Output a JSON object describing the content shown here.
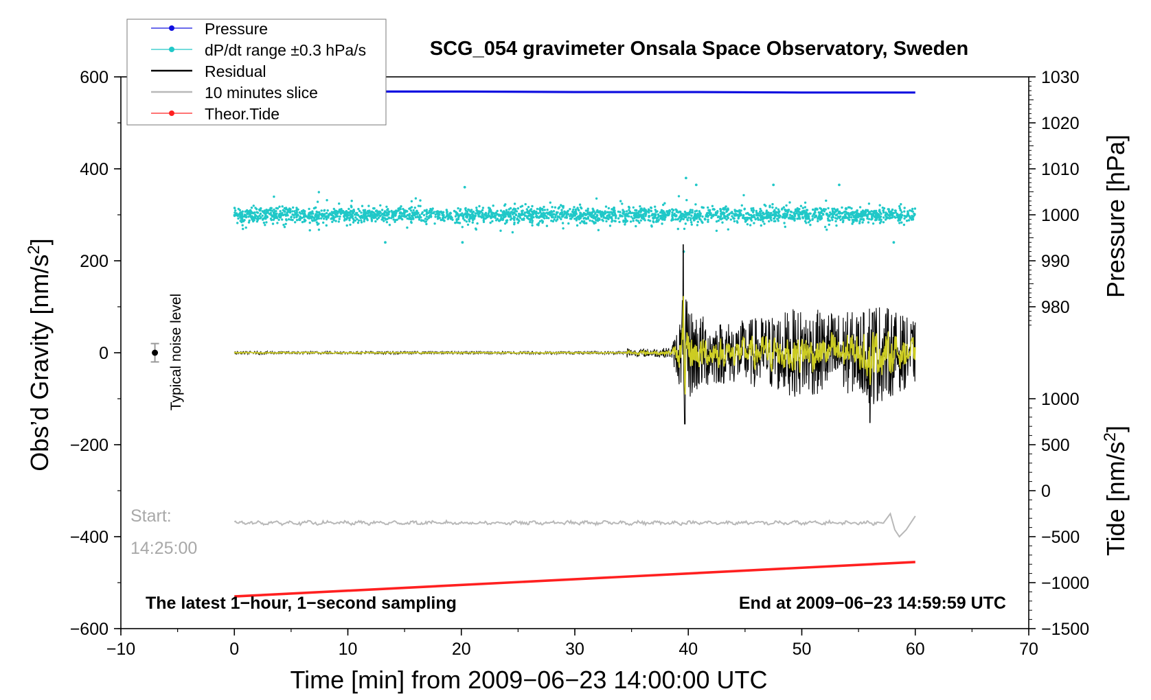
{
  "chart_data": {
    "type": "line",
    "title": "SCG_054 gravimeter Onsala Space Observatory, Sweden",
    "xlabel": "Time [min] from 2009−06−23 14:00:00 UTC",
    "xlim": [
      -10,
      70
    ],
    "xticks": [
      -10,
      0,
      10,
      20,
      30,
      40,
      50,
      60,
      70
    ],
    "xtick_labels": [
      "−10",
      "0",
      "10",
      "20",
      "30",
      "40",
      "50",
      "60",
      "70"
    ],
    "left_axis": {
      "label_main": "Obs’d Gravity [nm/s",
      "label_sup": "2",
      "label_end": "]",
      "ylim": [
        -600,
        600
      ],
      "ticks": [
        600,
        400,
        200,
        0,
        -200,
        -400,
        -600
      ],
      "tick_labels": [
        "600",
        "400",
        "200",
        "0",
        "−200",
        "−400",
        "−600"
      ]
    },
    "right_pressure_axis": {
      "label": "Pressure [hPa]",
      "ticks": [
        1030,
        1020,
        1010,
        1000,
        990,
        980
      ],
      "tick_labels": [
        "1030",
        "1020",
        "1010",
        "1000",
        "990",
        "980"
      ],
      "gravity_at_1030": 600,
      "gravity_per_hPa": 10
    },
    "right_tide_axis": {
      "label_main": "Tide [nm/s",
      "label_sup": "2",
      "label_end": "]",
      "ticks": [
        1000,
        500,
        0,
        -500,
        -1000,
        -1500
      ],
      "tick_labels": [
        "1000",
        "500",
        "0",
        "−500",
        "−1000",
        "−1500"
      ],
      "gravity_at_tide_0": -300,
      "gravity_per_nm": 0.2
    },
    "legend": {
      "position": "top-left",
      "entries": [
        {
          "label": "Pressure",
          "color": "#1010e0",
          "marker": true
        },
        {
          "label": "dP/dt range ±0.3 hPa/s",
          "color": "#20c8c8",
          "marker": true
        },
        {
          "label": "Residual",
          "color": "#000000",
          "marker": false
        },
        {
          "label": "10 minutes slice",
          "color": "#b8b8b8",
          "marker": false
        },
        {
          "label": "Theor.Tide",
          "color": "#ff2020",
          "marker": true
        }
      ]
    },
    "series": [
      {
        "name": "Pressure",
        "unit": "hPa",
        "x": [
          0,
          10,
          20,
          30,
          40,
          50,
          60
        ],
        "values": [
          1026.8,
          1026.8,
          1026.8,
          1026.7,
          1026.7,
          1026.6,
          1026.6
        ]
      },
      {
        "name": "dP/dt range ±0.3 hPa/s",
        "center_gravity": 300,
        "spread": 25,
        "x_range": [
          0,
          60
        ],
        "outliers_x": [
          20.3,
          39.8,
          40.7,
          47.5,
          53.3,
          13.3,
          20.1,
          39.6,
          58.1
        ]
      },
      {
        "name": "Residual",
        "x_quiet_end": 34.5,
        "x": [
          34.6,
          35,
          38.5,
          39.4,
          39.5,
          39.7,
          40.3,
          42,
          44,
          47,
          49.7,
          51.5,
          53.2,
          55.5,
          56.0,
          60
        ],
        "envelope": [
          20,
          10,
          15,
          120,
          235,
          160,
          130,
          95,
          90,
          110,
          130,
          125,
          120,
          120,
          160,
          90
        ],
        "peak_max": 235,
        "peak_min": -155
      },
      {
        "name": "10 minutes slice",
        "baseline": -370,
        "x": [
          0,
          57.2,
          57.8,
          58.2,
          58.6,
          59.2,
          60
        ],
        "values": [
          -370,
          -370,
          -350,
          -385,
          -400,
          -385,
          -355
        ]
      },
      {
        "name": "Theor.Tide",
        "x": [
          0,
          60
        ],
        "values": [
          -530,
          -455
        ]
      }
    ],
    "noise_marker": {
      "x": -7,
      "y": 0,
      "error": 20,
      "label": "Typical noise level"
    },
    "annotations": {
      "start_label": "Start:",
      "start_time": "14:25:00",
      "bottom_left": "The latest 1−hour, 1−second sampling",
      "bottom_right": "End at 2009−06−23 14:59:59 UTC"
    }
  }
}
